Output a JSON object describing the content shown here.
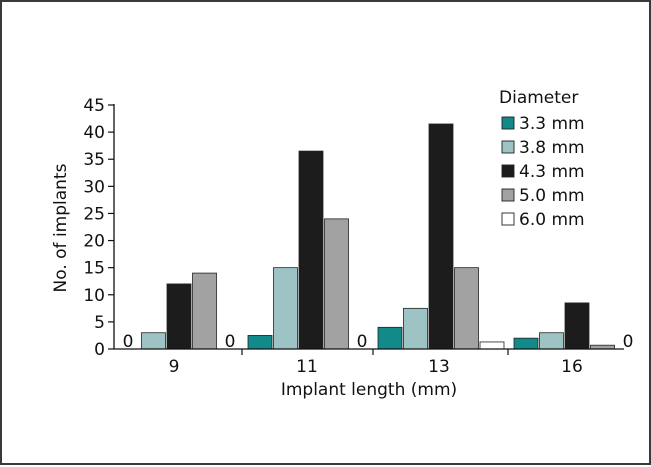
{
  "chart_data": {
    "type": "bar",
    "title": "",
    "xlabel": "Implant length (mm)",
    "ylabel": "No. of implants",
    "categories": [
      "9",
      "11",
      "13",
      "16"
    ],
    "ylim": [
      0,
      45
    ],
    "yticks": [
      0,
      5,
      10,
      15,
      20,
      25,
      30,
      35,
      40,
      45
    ],
    "legend_title": "Diameter",
    "legend_position": "top-right",
    "grid": false,
    "series": [
      {
        "name": "3.3 mm",
        "color": "#138a8a",
        "values": [
          0,
          2.5,
          4.0,
          2.0
        ]
      },
      {
        "name": "3.8 mm",
        "color": "#9ec3c5",
        "values": [
          3.0,
          15.0,
          7.5,
          3.0
        ]
      },
      {
        "name": "4.3 mm",
        "color": "#1c1c1c",
        "values": [
          12.0,
          36.5,
          41.5,
          8.5
        ]
      },
      {
        "name": "5.0 mm",
        "color": "#a2a2a2",
        "values": [
          14.0,
          24.0,
          15.0,
          0.7
        ]
      },
      {
        "name": "6.0 mm",
        "color": "#ffffff",
        "values": [
          0,
          0,
          1.3,
          0
        ]
      }
    ],
    "data_labels": [
      {
        "category": "9",
        "series": "3.3 mm",
        "text": "0"
      },
      {
        "category": "9",
        "series": "6.0 mm",
        "text": "0"
      },
      {
        "category": "11",
        "series": "6.0 mm",
        "text": "0"
      },
      {
        "category": "16",
        "series": "6.0 mm",
        "text": "0"
      }
    ]
  }
}
